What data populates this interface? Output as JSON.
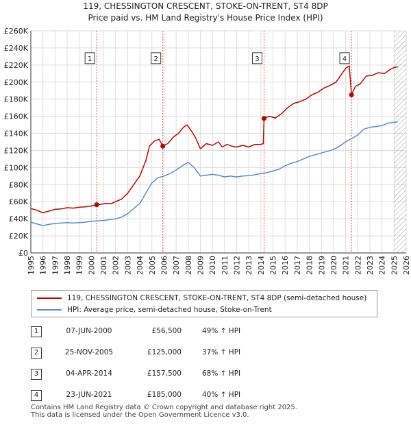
{
  "colors": {
    "property": "#c00000",
    "hpi": "#5b8ac5",
    "grid": "#dddddd",
    "marker_line": "#e05050"
  },
  "chart_data": {
    "type": "line",
    "title": "119, CHESSINGTON CRESCENT, STOKE-ON-TRENT, ST4 8DP",
    "subtitle": "Price paid vs. HM Land Registry's House Price Index (HPI)",
    "xlabel": "",
    "ylabel": "",
    "xlim": [
      1995,
      2026
    ],
    "ylim": [
      0,
      260000
    ],
    "y_ticks": [
      {
        "value": 0,
        "label": "£0"
      },
      {
        "value": 20000,
        "label": "£20K"
      },
      {
        "value": 40000,
        "label": "£40K"
      },
      {
        "value": 60000,
        "label": "£60K"
      },
      {
        "value": 80000,
        "label": "£80K"
      },
      {
        "value": 100000,
        "label": "£100K"
      },
      {
        "value": 120000,
        "label": "£120K"
      },
      {
        "value": 140000,
        "label": "£140K"
      },
      {
        "value": 160000,
        "label": "£160K"
      },
      {
        "value": 180000,
        "label": "£180K"
      },
      {
        "value": 200000,
        "label": "£200K"
      },
      {
        "value": 220000,
        "label": "£220K"
      },
      {
        "value": 240000,
        "label": "£240K"
      },
      {
        "value": 260000,
        "label": "£260K"
      }
    ],
    "x_ticks": [
      "1995",
      "1996",
      "1997",
      "1998",
      "1999",
      "2000",
      "2001",
      "2002",
      "2003",
      "2004",
      "2005",
      "2006",
      "2007",
      "2008",
      "2009",
      "2010",
      "2011",
      "2012",
      "2013",
      "2014",
      "2015",
      "2016",
      "2017",
      "2018",
      "2019",
      "2020",
      "2021",
      "2022",
      "2023",
      "2024",
      "2025",
      "2026"
    ],
    "grid": true,
    "hatched_after": 2025.0,
    "series": [
      {
        "name": "119, CHESSINGTON CRESCENT, STOKE-ON-TRENT, ST4 8DP (semi-detached house)",
        "color": "#c00000",
        "points": [
          [
            1995.0,
            52000
          ],
          [
            1995.5,
            50000
          ],
          [
            1996.0,
            47000
          ],
          [
            1996.5,
            49000
          ],
          [
            1997.0,
            51000
          ],
          [
            1997.5,
            51500
          ],
          [
            1998.0,
            53000
          ],
          [
            1998.5,
            52500
          ],
          [
            1999.0,
            53500
          ],
          [
            1999.5,
            54000
          ],
          [
            2000.0,
            55000
          ],
          [
            2000.44,
            56500
          ],
          [
            2000.8,
            57000
          ],
          [
            2001.2,
            58000
          ],
          [
            2001.6,
            57500
          ],
          [
            2002.0,
            60000
          ],
          [
            2002.5,
            63000
          ],
          [
            2003.0,
            70000
          ],
          [
            2003.5,
            80000
          ],
          [
            2004.0,
            90000
          ],
          [
            2004.5,
            108000
          ],
          [
            2004.8,
            125000
          ],
          [
            2005.2,
            131000
          ],
          [
            2005.6,
            133000
          ],
          [
            2005.9,
            125000
          ],
          [
            2006.3,
            128000
          ],
          [
            2006.8,
            136000
          ],
          [
            2007.2,
            140000
          ],
          [
            2007.6,
            147000
          ],
          [
            2007.9,
            150000
          ],
          [
            2008.3,
            142000
          ],
          [
            2008.6,
            135000
          ],
          [
            2009.0,
            122000
          ],
          [
            2009.5,
            128000
          ],
          [
            2010.0,
            126000
          ],
          [
            2010.5,
            130000
          ],
          [
            2010.8,
            124000
          ],
          [
            2011.2,
            127000
          ],
          [
            2011.6,
            125000
          ],
          [
            2012.0,
            124000
          ],
          [
            2012.5,
            126000
          ],
          [
            2013.0,
            124000
          ],
          [
            2013.5,
            127000
          ],
          [
            2014.0,
            127000
          ],
          [
            2014.2,
            128000
          ],
          [
            2014.26,
            157500
          ],
          [
            2014.7,
            160000
          ],
          [
            2015.2,
            158000
          ],
          [
            2015.7,
            163000
          ],
          [
            2016.2,
            170000
          ],
          [
            2016.7,
            175000
          ],
          [
            2017.2,
            177000
          ],
          [
            2017.7,
            180000
          ],
          [
            2018.2,
            185000
          ],
          [
            2018.7,
            188000
          ],
          [
            2019.2,
            193000
          ],
          [
            2019.7,
            196000
          ],
          [
            2020.2,
            200000
          ],
          [
            2020.7,
            210000
          ],
          [
            2021.0,
            216000
          ],
          [
            2021.3,
            219000
          ],
          [
            2021.48,
            185000
          ],
          [
            2021.8,
            195000
          ],
          [
            2022.2,
            198000
          ],
          [
            2022.7,
            207000
          ],
          [
            2023.2,
            208000
          ],
          [
            2023.7,
            211000
          ],
          [
            2024.2,
            210000
          ],
          [
            2024.7,
            215000
          ],
          [
            2025.0,
            217000
          ],
          [
            2025.3,
            218000
          ]
        ]
      },
      {
        "name": "HPI: Average price, semi-detached house, Stoke-on-Trent",
        "color": "#5b8ac5",
        "points": [
          [
            1995.0,
            36000
          ],
          [
            1995.5,
            34000
          ],
          [
            1996.0,
            32000
          ],
          [
            1996.5,
            33500
          ],
          [
            1997.0,
            34500
          ],
          [
            1997.5,
            35000
          ],
          [
            1998.0,
            35500
          ],
          [
            1998.5,
            35000
          ],
          [
            1999.0,
            35500
          ],
          [
            1999.5,
            36000
          ],
          [
            2000.0,
            37000
          ],
          [
            2000.5,
            37500
          ],
          [
            2001.0,
            38000
          ],
          [
            2001.5,
            39000
          ],
          [
            2002.0,
            40000
          ],
          [
            2002.5,
            42000
          ],
          [
            2003.0,
            46000
          ],
          [
            2003.5,
            52000
          ],
          [
            2004.0,
            58000
          ],
          [
            2004.5,
            70000
          ],
          [
            2005.0,
            82000
          ],
          [
            2005.5,
            88000
          ],
          [
            2006.0,
            90000
          ],
          [
            2006.5,
            93000
          ],
          [
            2007.0,
            97000
          ],
          [
            2007.5,
            102000
          ],
          [
            2008.0,
            106000
          ],
          [
            2008.5,
            100000
          ],
          [
            2009.0,
            90000
          ],
          [
            2009.5,
            91000
          ],
          [
            2010.0,
            92000
          ],
          [
            2010.5,
            91000
          ],
          [
            2011.0,
            89000
          ],
          [
            2011.5,
            90000
          ],
          [
            2012.0,
            89000
          ],
          [
            2012.5,
            90000
          ],
          [
            2013.0,
            90500
          ],
          [
            2013.5,
            91500
          ],
          [
            2014.0,
            93000
          ],
          [
            2014.5,
            94000
          ],
          [
            2015.0,
            96000
          ],
          [
            2015.5,
            98000
          ],
          [
            2016.0,
            102000
          ],
          [
            2016.5,
            105000
          ],
          [
            2017.0,
            107000
          ],
          [
            2017.5,
            110000
          ],
          [
            2018.0,
            113000
          ],
          [
            2018.5,
            115000
          ],
          [
            2019.0,
            117000
          ],
          [
            2019.5,
            119000
          ],
          [
            2020.0,
            121000
          ],
          [
            2020.5,
            125000
          ],
          [
            2021.0,
            130000
          ],
          [
            2021.5,
            134000
          ],
          [
            2022.0,
            138000
          ],
          [
            2022.5,
            145000
          ],
          [
            2023.0,
            147000
          ],
          [
            2023.5,
            148000
          ],
          [
            2024.0,
            149000
          ],
          [
            2024.5,
            152000
          ],
          [
            2025.0,
            153000
          ],
          [
            2025.3,
            153500
          ]
        ]
      }
    ],
    "sale_markers": [
      {
        "label": "1",
        "x": 2000.44,
        "y": 56500
      },
      {
        "label": "2",
        "x": 2005.9,
        "y": 125000
      },
      {
        "label": "3",
        "x": 2014.26,
        "y": 157500
      },
      {
        "label": "4",
        "x": 2021.48,
        "y": 185000
      }
    ],
    "marker_label_y": 228000
  },
  "legend": {
    "property_label": "119, CHESSINGTON CRESCENT, STOKE-ON-TRENT, ST4 8DP (semi-detached house)",
    "hpi_label": "HPI: Average price, semi-detached house, Stoke-on-Trent"
  },
  "sales": [
    {
      "num": "1",
      "date": "07-JUN-2000",
      "price": "£56,500",
      "hpi": "49% ↑ HPI"
    },
    {
      "num": "2",
      "date": "25-NOV-2005",
      "price": "£125,000",
      "hpi": "37% ↑ HPI"
    },
    {
      "num": "3",
      "date": "04-APR-2014",
      "price": "£157,500",
      "hpi": "68% ↑ HPI"
    },
    {
      "num": "4",
      "date": "23-JUN-2021",
      "price": "£185,000",
      "hpi": "40% ↑ HPI"
    }
  ],
  "footer": {
    "line1": "Contains HM Land Registry data © Crown copyright and database right 2025.",
    "line2": "This data is licensed under the Open Government Licence v3.0."
  }
}
